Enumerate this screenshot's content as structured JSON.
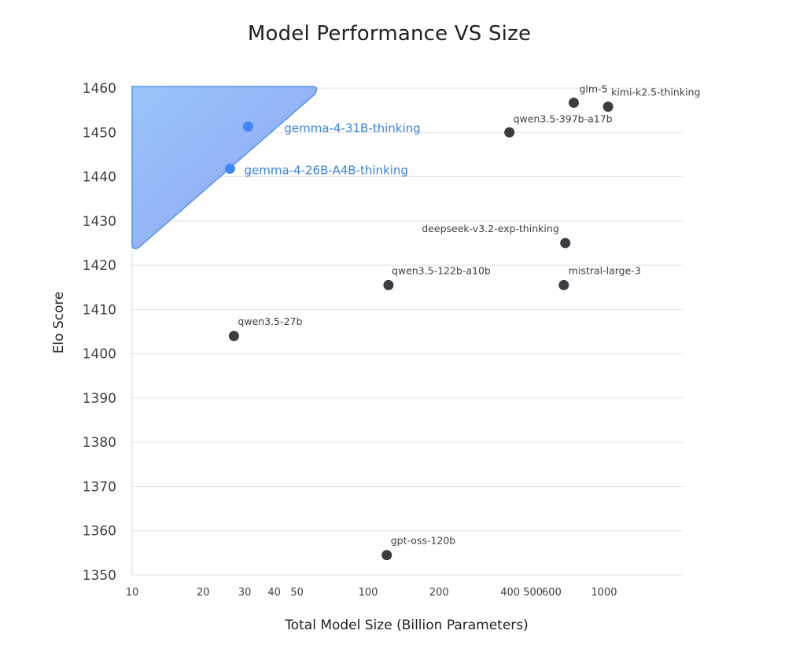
{
  "chart_data": {
    "type": "scatter",
    "title": "Model Performance VS Size",
    "xlabel": "Total Model Size (Billion Parameters)",
    "ylabel": "Elo Score",
    "xscale": "log",
    "xlim": [
      10,
      2000
    ],
    "ylim": [
      1350,
      1460
    ],
    "yticks": [
      "1460",
      "1450",
      "1440",
      "1430",
      "1420",
      "1410",
      "1400",
      "1390",
      "1380",
      "1370",
      "1360",
      "1350"
    ],
    "xticks": [
      "10",
      "20",
      "30",
      "40",
      "50",
      "100",
      "200",
      "400",
      "500",
      "600",
      "1000"
    ],
    "xtick_values": [
      10,
      20,
      30,
      40,
      50,
      100,
      200,
      400,
      500,
      600,
      1000
    ],
    "highlight_region": {
      "type": "triangle",
      "color": "#8ab4f8"
    },
    "points": [
      {
        "name": "gemma-4-31B-thinking",
        "x": 31,
        "y": 1451.3,
        "highlight": true
      },
      {
        "name": "gemma-4-26B-A4B-thinking",
        "x": 26,
        "y": 1441.8,
        "highlight": true
      },
      {
        "name": "glm-5",
        "x": 744,
        "y": 1456.7,
        "highlight": false
      },
      {
        "name": "kimi-k2.5-thinking",
        "x": 1040,
        "y": 1455.8,
        "highlight": false
      },
      {
        "name": "qwen3.5-397b-a17b",
        "x": 397,
        "y": 1450.0,
        "highlight": false
      },
      {
        "name": "deepseek-v3.2-exp-thinking",
        "x": 685,
        "y": 1425.0,
        "highlight": false
      },
      {
        "name": "qwen3.5-122b-a10b",
        "x": 122,
        "y": 1415.5,
        "highlight": false
      },
      {
        "name": "mistral-large-3",
        "x": 675,
        "y": 1415.5,
        "highlight": false
      },
      {
        "name": "qwen3.5-27b",
        "x": 27,
        "y": 1404.0,
        "highlight": false
      },
      {
        "name": "gpt-oss-120b",
        "x": 120,
        "y": 1354.5,
        "highlight": false
      }
    ],
    "colors": {
      "point": "#3c3c41",
      "highlight_point": "#4285f4",
      "highlight_label": "#3b82e0"
    }
  }
}
